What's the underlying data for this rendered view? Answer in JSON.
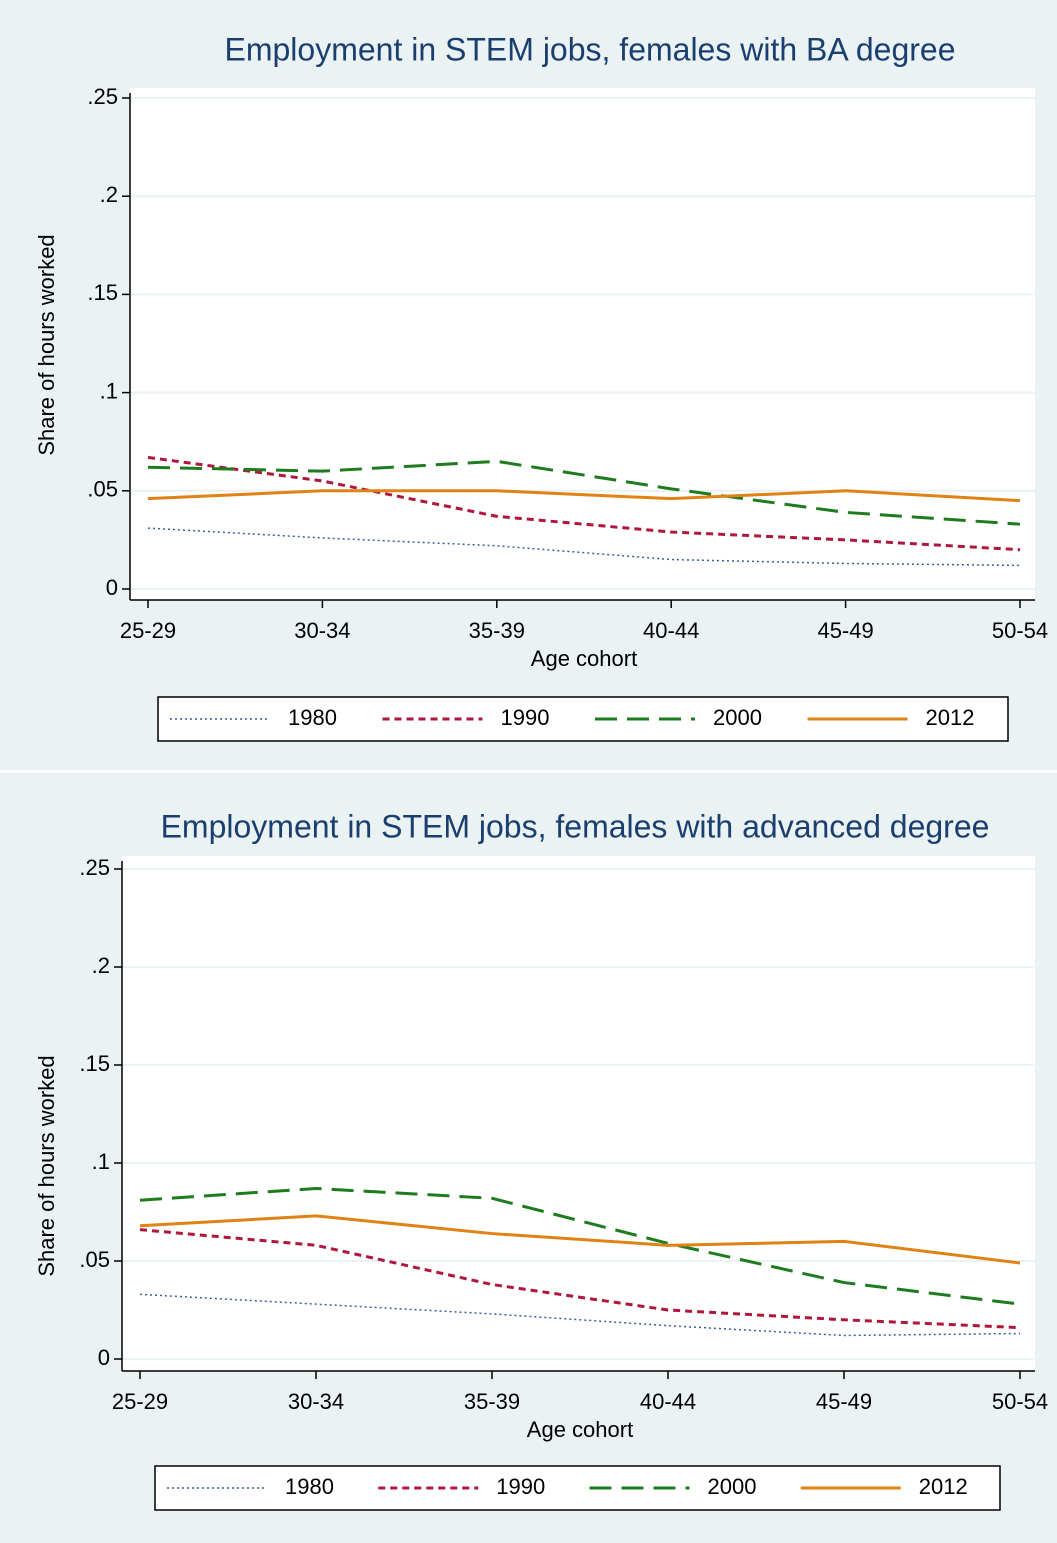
{
  "chart_data": [
    {
      "type": "line",
      "title": "Employment in STEM jobs, females with BA degree",
      "x_label": "Age cohort",
      "y_label": "Share of hours worked",
      "categories": [
        "25-29",
        "30-34",
        "35-39",
        "40-44",
        "45-49",
        "50-54"
      ],
      "series": [
        {
          "name": "1980",
          "color": "#3a5f9e",
          "dash": "dotted",
          "values": [
            0.031,
            0.026,
            0.022,
            0.015,
            0.013,
            0.012
          ]
        },
        {
          "name": "1990",
          "color": "#b0173c",
          "dash": "short",
          "values": [
            0.067,
            0.055,
            0.037,
            0.029,
            0.025,
            0.02
          ]
        },
        {
          "name": "2000",
          "color": "#1e7b1e",
          "dash": "long",
          "values": [
            0.062,
            0.06,
            0.065,
            0.051,
            0.039,
            0.033
          ]
        },
        {
          "name": "2012",
          "color": "#e08214",
          "dash": "solid",
          "values": [
            0.046,
            0.05,
            0.05,
            0.046,
            0.05,
            0.045
          ]
        }
      ],
      "ylim": [
        0,
        0.25
      ],
      "yticks": [
        0,
        {
          "value": 0.05,
          "label": ".05"
        },
        {
          "value": 0.1,
          "label": ".1"
        },
        {
          "value": 0.15,
          "label": ".15"
        },
        {
          "value": 0.2,
          "label": ".2"
        },
        {
          "value": 0.25,
          "label": ".25"
        }
      ],
      "grid": true,
      "legend": "bottom"
    },
    {
      "type": "line",
      "title": "Employment in STEM jobs, females with advanced degree",
      "x_label": "Age cohort",
      "y_label": "Share of hours worked",
      "categories": [
        "25-29",
        "30-34",
        "35-39",
        "40-44",
        "45-49",
        "50-54"
      ],
      "series": [
        {
          "name": "1980",
          "color": "#3a5f9e",
          "dash": "dotted",
          "values": [
            0.033,
            0.028,
            0.023,
            0.017,
            0.012,
            0.013
          ]
        },
        {
          "name": "1990",
          "color": "#b0173c",
          "dash": "short",
          "values": [
            0.066,
            0.058,
            0.038,
            0.025,
            0.02,
            0.016
          ]
        },
        {
          "name": "2000",
          "color": "#1e7b1e",
          "dash": "long",
          "values": [
            0.081,
            0.087,
            0.082,
            0.059,
            0.039,
            0.028
          ]
        },
        {
          "name": "2012",
          "color": "#e08214",
          "dash": "solid",
          "values": [
            0.068,
            0.073,
            0.064,
            0.058,
            0.06,
            0.049
          ]
        }
      ],
      "ylim": [
        0,
        0.25
      ],
      "yticks": [
        0,
        {
          "value": 0.05,
          "label": ".05"
        },
        {
          "value": 0.1,
          "label": ".1"
        },
        {
          "value": 0.15,
          "label": ".15"
        },
        {
          "value": 0.2,
          "label": ".2"
        },
        {
          "value": 0.25,
          "label": ".25"
        }
      ],
      "grid": true,
      "legend": "bottom"
    }
  ]
}
